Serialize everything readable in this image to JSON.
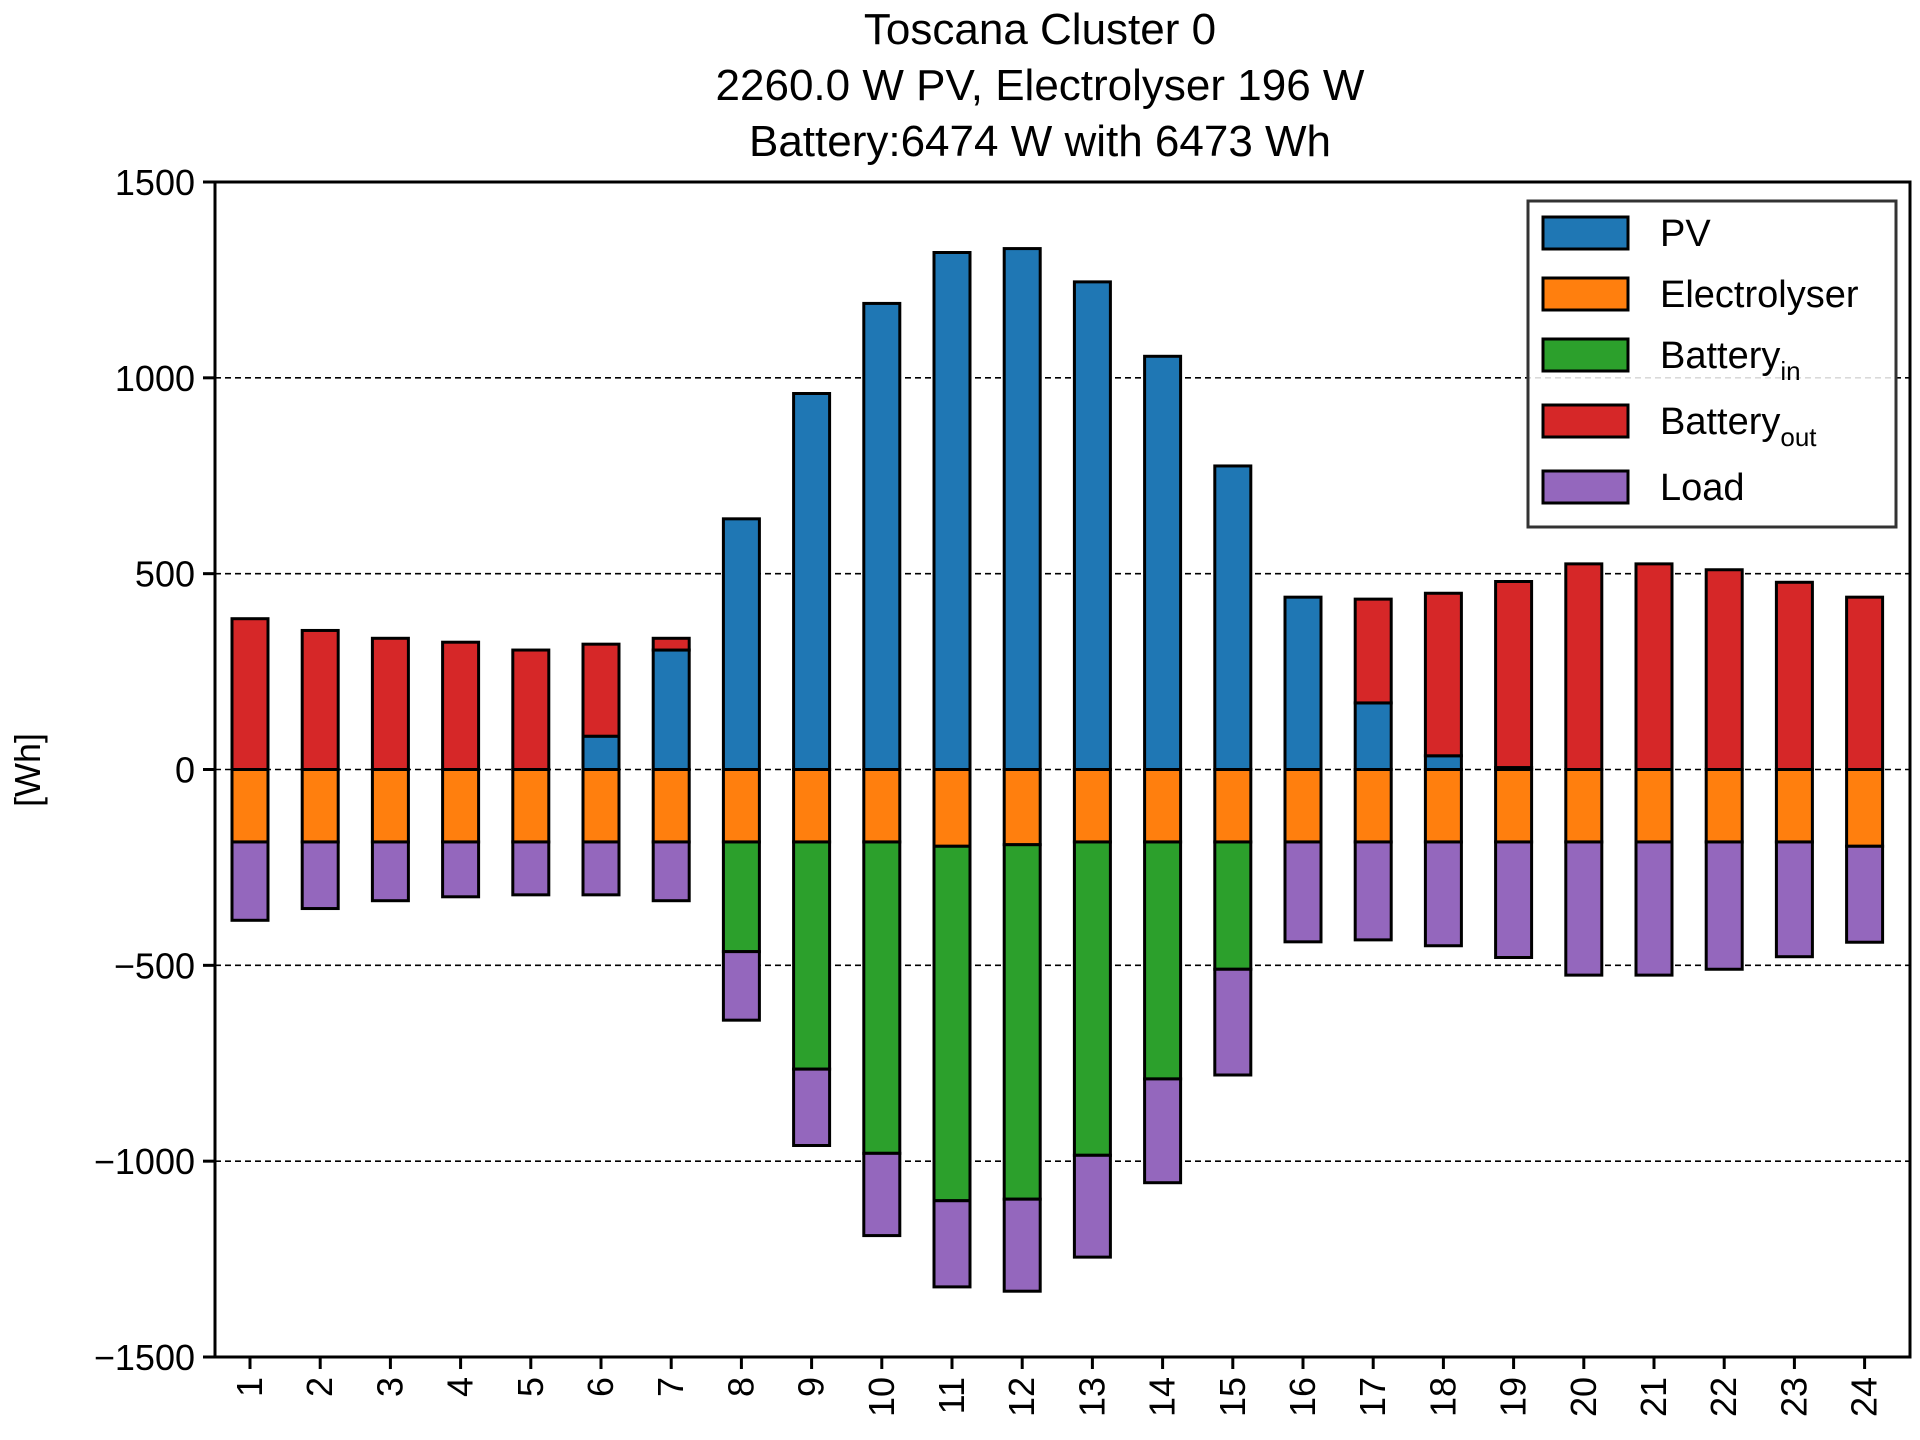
{
  "chart_data": {
    "type": "bar",
    "stacked": true,
    "title_lines": [
      "Toscana Cluster 0",
      "2260.0 W PV, Electrolyser 196 W",
      "Battery:6474 W with 6473 Wh"
    ],
    "xlabel": "",
    "ylabel": "[Wh]",
    "ylim": [
      -1500,
      1500
    ],
    "yticks": [
      1500,
      1000,
      500,
      0,
      -500,
      -1000,
      -1500
    ],
    "ytick_labels": [
      "1500",
      "1000",
      "500",
      "0",
      "−500",
      "−1000",
      "−1500"
    ],
    "grid": "horizontal dashed at major ticks",
    "legend_placement": "top-right",
    "categories": [
      "1",
      "2",
      "3",
      "4",
      "5",
      "6",
      "7",
      "8",
      "9",
      "10",
      "11",
      "12",
      "13",
      "14",
      "15",
      "16",
      "17",
      "18",
      "19",
      "20",
      "21",
      "22",
      "23",
      "24"
    ],
    "series": [
      {
        "name": "PV",
        "color": "#1f77b4",
        "values": [
          0,
          0,
          0,
          0,
          0,
          85,
          305,
          640,
          960,
          1190,
          1320,
          1330,
          1245,
          1055,
          775,
          440,
          170,
          35,
          5,
          0,
          0,
          0,
          0,
          0
        ]
      },
      {
        "name": "Electrolyser",
        "color": "#ff7f0e",
        "values": [
          -185,
          -185,
          -185,
          -185,
          -185,
          -185,
          -185,
          -185,
          -185,
          -185,
          -196,
          -192,
          -185,
          -185,
          -185,
          -185,
          -185,
          -185,
          -185,
          -185,
          -185,
          -185,
          -185,
          -196
        ]
      },
      {
        "name": "Battery",
        "sub": "in",
        "color": "#2ca02c",
        "values": [
          0,
          0,
          0,
          0,
          0,
          0,
          0,
          -280,
          -580,
          -795,
          -905,
          -905,
          -800,
          -605,
          -325,
          0,
          0,
          0,
          0,
          0,
          0,
          0,
          0,
          0
        ]
      },
      {
        "name": "Battery",
        "sub": "out",
        "color": "#d62728",
        "values": [
          385,
          355,
          335,
          325,
          305,
          235,
          30,
          0,
          0,
          0,
          0,
          0,
          0,
          0,
          0,
          0,
          265,
          415,
          475,
          525,
          525,
          510,
          478,
          440
        ]
      },
      {
        "name": "Load",
        "color": "#9467bd",
        "values": [
          -200,
          -170,
          -150,
          -140,
          -135,
          -135,
          -150,
          -175,
          -195,
          -210,
          -220,
          -235,
          -260,
          -265,
          -270,
          -255,
          -250,
          -265,
          -295,
          -340,
          -340,
          -325,
          -293,
          -245
        ]
      }
    ]
  }
}
